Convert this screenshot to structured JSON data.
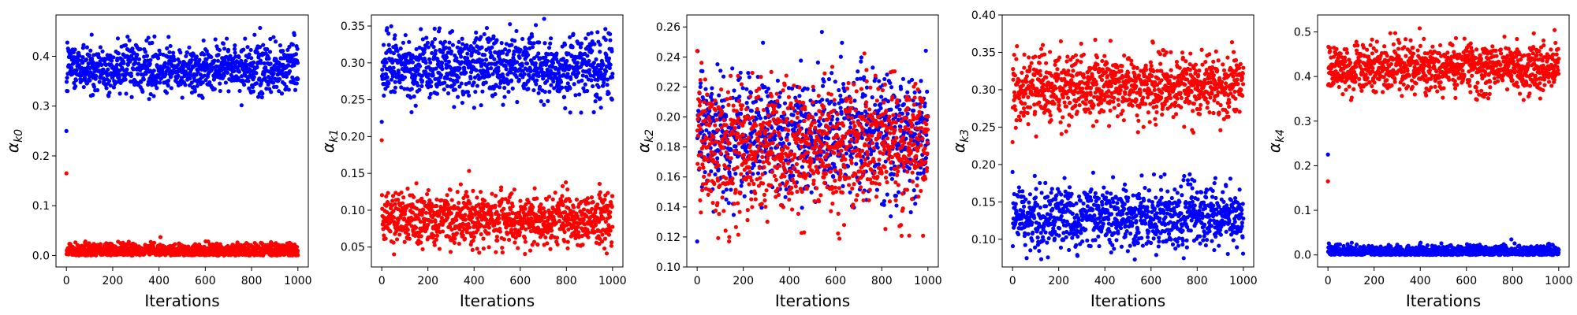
{
  "figure": {
    "background": "#ffffff",
    "series_colors": {
      "series_a": "#ff0000",
      "series_b": "#0000ff"
    }
  },
  "chart_data": [
    {
      "type": "scatter",
      "xlabel": "Iterations",
      "ylabel": "α_{k0}",
      "ylabel_base": "α",
      "ylabel_sub": "k0",
      "xlim": [
        -45,
        1045
      ],
      "ylim": [
        -0.023,
        0.483
      ],
      "xticks": [
        0,
        200,
        400,
        600,
        800,
        1000
      ],
      "xtick_labels": [
        "0",
        "200",
        "400",
        "600",
        "800",
        "1000"
      ],
      "yticks": [
        0.0,
        0.1,
        0.2,
        0.3,
        0.4
      ],
      "ytick_labels": [
        "0.0",
        "0.1",
        "0.2",
        "0.3",
        "0.4"
      ],
      "grid": false,
      "series": [
        {
          "color": "#0000ff",
          "n_points": 1000,
          "x_start": 0,
          "x_end": 1000,
          "initial_value": 0.25,
          "mean": 0.375,
          "spread": 0.025,
          "min": 0.3,
          "max": 0.46
        },
        {
          "color": "#ff0000",
          "n_points": 1000,
          "x_start": 0,
          "x_end": 1000,
          "initial_value": 0.165,
          "mean": 0.01,
          "spread": 0.007,
          "min": 0.0,
          "max": 0.045
        }
      ]
    },
    {
      "type": "scatter",
      "xlabel": "Iterations",
      "ylabel": "α_{k1}",
      "ylabel_base": "α",
      "ylabel_sub": "k1",
      "xlim": [
        -45,
        1045
      ],
      "ylim": [
        0.023,
        0.365
      ],
      "xticks": [
        0,
        200,
        400,
        600,
        800,
        1000
      ],
      "xtick_labels": [
        "0",
        "200",
        "400",
        "600",
        "800",
        "1000"
      ],
      "yticks": [
        0.05,
        0.1,
        0.15,
        0.2,
        0.25,
        0.3,
        0.35
      ],
      "ytick_labels": [
        "0.05",
        "0.10",
        "0.15",
        "0.20",
        "0.25",
        "0.30",
        "0.35"
      ],
      "grid": false,
      "series": [
        {
          "color": "#0000ff",
          "n_points": 1000,
          "x_start": 0,
          "x_end": 1000,
          "initial_value": 0.22,
          "mean": 0.295,
          "spread": 0.022,
          "min": 0.23,
          "max": 0.36
        },
        {
          "color": "#ff0000",
          "n_points": 1000,
          "x_start": 0,
          "x_end": 1000,
          "initial_value": 0.195,
          "mean": 0.088,
          "spread": 0.018,
          "min": 0.04,
          "max": 0.155
        }
      ]
    },
    {
      "type": "scatter",
      "xlabel": "Iterations",
      "ylabel": "α_{k2}",
      "ylabel_base": "α",
      "ylabel_sub": "k2",
      "xlim": [
        -45,
        1045
      ],
      "ylim": [
        0.1,
        0.268
      ],
      "xticks": [
        0,
        200,
        400,
        600,
        800,
        1000
      ],
      "xtick_labels": [
        "0",
        "200",
        "400",
        "600",
        "800",
        "1000"
      ],
      "yticks": [
        0.1,
        0.12,
        0.14,
        0.16,
        0.18,
        0.2,
        0.22,
        0.24,
        0.26
      ],
      "ytick_labels": [
        "0.10",
        "0.12",
        "0.14",
        "0.16",
        "0.18",
        "0.20",
        "0.22",
        "0.24",
        "0.26"
      ],
      "grid": false,
      "series": [
        {
          "color": "#0000ff",
          "n_points": 1000,
          "x_start": 0,
          "x_end": 1000,
          "initial_value": 0.117,
          "mean": 0.188,
          "spread": 0.02,
          "min": 0.13,
          "max": 0.262
        },
        {
          "color": "#ff0000",
          "n_points": 1000,
          "x_start": 0,
          "x_end": 1000,
          "initial_value": 0.244,
          "mean": 0.18,
          "spread": 0.022,
          "min": 0.112,
          "max": 0.25
        }
      ]
    },
    {
      "type": "scatter",
      "xlabel": "Iterations",
      "ylabel": "α_{k3}",
      "ylabel_base": "α",
      "ylabel_sub": "k3",
      "xlim": [
        -45,
        1045
      ],
      "ylim": [
        0.063,
        0.4
      ],
      "xticks": [
        0,
        200,
        400,
        600,
        800,
        1000
      ],
      "xtick_labels": [
        "0",
        "200",
        "400",
        "600",
        "800",
        "1000"
      ],
      "yticks": [
        0.1,
        0.15,
        0.2,
        0.25,
        0.3,
        0.35,
        0.4
      ],
      "ytick_labels": [
        "0.10",
        "0.15",
        "0.20",
        "0.25",
        "0.30",
        "0.35",
        "0.40"
      ],
      "grid": false,
      "series": [
        {
          "color": "#ff0000",
          "n_points": 1000,
          "x_start": 0,
          "x_end": 1000,
          "initial_value": 0.23,
          "mean": 0.305,
          "spread": 0.022,
          "min": 0.235,
          "max": 0.385
        },
        {
          "color": "#0000ff",
          "n_points": 1000,
          "x_start": 0,
          "x_end": 1000,
          "initial_value": 0.19,
          "mean": 0.13,
          "spread": 0.02,
          "min": 0.07,
          "max": 0.19
        }
      ]
    },
    {
      "type": "scatter",
      "xlabel": "Iterations",
      "ylabel": "α_{k4}",
      "ylabel_base": "α",
      "ylabel_sub": "k4",
      "xlim": [
        -45,
        1045
      ],
      "ylim": [
        -0.027,
        0.538
      ],
      "xticks": [
        0,
        200,
        400,
        600,
        800,
        1000
      ],
      "xtick_labels": [
        "0",
        "200",
        "400",
        "600",
        "800",
        "1000"
      ],
      "yticks": [
        0.0,
        0.1,
        0.2,
        0.3,
        0.4,
        0.5
      ],
      "ytick_labels": [
        "0.0",
        "0.1",
        "0.2",
        "0.3",
        "0.4",
        "0.5"
      ],
      "grid": false,
      "series": [
        {
          "color": "#ff0000",
          "n_points": 1000,
          "x_start": 0,
          "x_end": 1000,
          "initial_value": 0.165,
          "mean": 0.42,
          "spread": 0.028,
          "min": 0.345,
          "max": 0.52
        },
        {
          "color": "#0000ff",
          "n_points": 1000,
          "x_start": 0,
          "x_end": 1000,
          "initial_value": 0.225,
          "mean": 0.008,
          "spread": 0.007,
          "min": 0.0,
          "max": 0.04
        }
      ]
    }
  ]
}
